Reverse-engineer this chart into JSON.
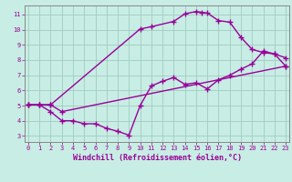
{
  "xlabel": "Windchill (Refroidissement éolien,°C)",
  "ylabel": "",
  "bg_color": "#c8ede4",
  "grid_color": "#a0ccc0",
  "line_color": "#990099",
  "spine_color": "#888888",
  "x_ticks": [
    0,
    1,
    2,
    3,
    4,
    5,
    6,
    7,
    8,
    9,
    10,
    11,
    12,
    13,
    14,
    15,
    16,
    17,
    18,
    19,
    20,
    21,
    22,
    23
  ],
  "y_ticks": [
    3,
    4,
    5,
    6,
    7,
    8,
    9,
    10,
    11
  ],
  "xlim": [
    -0.3,
    23.3
  ],
  "ylim": [
    2.6,
    11.6
  ],
  "line1_x": [
    0,
    1,
    2,
    10,
    11,
    13,
    14,
    15,
    15.5,
    16,
    17,
    18,
    19,
    20,
    21,
    22,
    23
  ],
  "line1_y": [
    5.05,
    5.05,
    5.05,
    10.05,
    10.2,
    10.55,
    11.05,
    11.2,
    11.15,
    11.1,
    10.6,
    10.5,
    9.5,
    8.7,
    8.5,
    8.4,
    8.15
  ],
  "line2_x": [
    0,
    1,
    2,
    3,
    23
  ],
  "line2_y": [
    5.05,
    5.05,
    5.05,
    4.6,
    7.6
  ],
  "line3_x": [
    0,
    1,
    2,
    3,
    4,
    5,
    6,
    7,
    8,
    9,
    10,
    11,
    12,
    13,
    14,
    15,
    16,
    17,
    18,
    19,
    20,
    21,
    22,
    23
  ],
  "line3_y": [
    5.05,
    5.05,
    4.6,
    4.0,
    4.0,
    3.8,
    3.8,
    3.5,
    3.3,
    3.05,
    5.0,
    6.3,
    6.6,
    6.85,
    6.4,
    6.5,
    6.1,
    6.7,
    7.0,
    7.4,
    7.75,
    8.6,
    8.4,
    7.6
  ],
  "marker": "+",
  "markersize": 4,
  "markeredgewidth": 1.0,
  "linewidth": 1.0,
  "tick_fontsize": 5.0,
  "label_fontsize": 6.0
}
